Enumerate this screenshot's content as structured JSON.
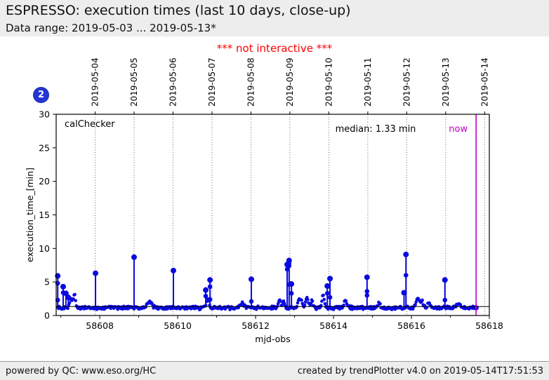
{
  "header": {
    "title": "ESPRESSO: execution times (last 10 days, close-up)",
    "subtitle": "Data range: 2019-05-03 ... 2019-05-13*"
  },
  "notice": "*** not interactive ***",
  "badge": "2",
  "footer": {
    "left": "powered by QC: www.eso.org/HC",
    "right": "created by trendPlotter v4.0 on 2019-05-14T17:51:53"
  },
  "chart_data": {
    "type": "scatter",
    "inner_label": "calChecker",
    "xlabel": "mjd-obs",
    "ylabel": "execution_time_[min]",
    "xlim": [
      58606.88,
      58618.0
    ],
    "ylim": [
      0,
      30
    ],
    "x_major_ticks": [
      58608,
      58610,
      58612,
      58614,
      58616,
      58618
    ],
    "x_minor_ticks": [
      58607,
      58609,
      58611,
      58613,
      58615,
      58617
    ],
    "y_ticks": [
      0,
      5,
      10,
      15,
      20,
      25,
      30
    ],
    "grid": "vertical-dotted-per-date",
    "top_dates": [
      {
        "label": "2019-05-04",
        "mjd": 58607.88
      },
      {
        "label": "2019-05-05",
        "mjd": 58608.88
      },
      {
        "label": "2019-05-06",
        "mjd": 58609.88
      },
      {
        "label": "2019-05-07",
        "mjd": 58610.88
      },
      {
        "label": "2019-05-08",
        "mjd": 58611.88
      },
      {
        "label": "2019-05-09",
        "mjd": 58612.88
      },
      {
        "label": "2019-05-10",
        "mjd": 58613.88
      },
      {
        "label": "2019-05-11",
        "mjd": 58614.88
      },
      {
        "label": "2019-05-12",
        "mjd": 58615.88
      },
      {
        "label": "2019-05-13",
        "mjd": 58616.88
      },
      {
        "label": "2019-05-14",
        "mjd": 58617.88
      }
    ],
    "median": {
      "value": 1.33,
      "label": "median: 1.33 min"
    },
    "now": {
      "mjd": 58617.66,
      "label": "now",
      "color": "#bf00bf"
    },
    "series_color": "#0a0ae0",
    "baseline": {
      "start": 58606.92,
      "end": 58617.66,
      "step": 0.02,
      "base": 1.15,
      "noise": 0.3,
      "seed": 987654321
    },
    "bumps": [
      {
        "mjd": 58607.26,
        "h": 1.4,
        "w": 0.05
      },
      {
        "mjd": 58607.35,
        "h": 2.0,
        "w": 0.04
      },
      {
        "mjd": 58609.28,
        "h": 0.8,
        "w": 0.09
      },
      {
        "mjd": 58610.77,
        "h": 1.5,
        "w": 0.05
      },
      {
        "mjd": 58611.66,
        "h": 0.7,
        "w": 0.07
      },
      {
        "mjd": 58612.61,
        "h": 1.1,
        "w": 0.05
      },
      {
        "mjd": 58612.72,
        "h": 0.9,
        "w": 0.04
      },
      {
        "mjd": 58613.14,
        "h": 1.3,
        "w": 0.07
      },
      {
        "mjd": 58613.32,
        "h": 1.6,
        "w": 0.05
      },
      {
        "mjd": 58613.44,
        "h": 1.1,
        "w": 0.04
      },
      {
        "mjd": 58613.73,
        "h": 2.1,
        "w": 0.04
      },
      {
        "mjd": 58614.31,
        "h": 0.9,
        "w": 0.07
      },
      {
        "mjd": 58615.17,
        "h": 0.7,
        "w": 0.05
      },
      {
        "mjd": 58616.16,
        "h": 1.4,
        "w": 0.06
      },
      {
        "mjd": 58616.27,
        "h": 1.0,
        "w": 0.05
      },
      {
        "mjd": 58616.45,
        "h": 0.9,
        "w": 0.04
      },
      {
        "mjd": 58617.19,
        "h": 0.6,
        "w": 0.06
      }
    ],
    "spikes": [
      {
        "mjd": 58606.92,
        "peak": 5.9,
        "dots": [
          4.8,
          2.3
        ]
      },
      {
        "mjd": 58607.06,
        "peak": 4.3,
        "dots": [
          3.4
        ]
      },
      {
        "mjd": 58607.13,
        "peak": 3.3,
        "dots": []
      },
      {
        "mjd": 58607.19,
        "peak": 2.7,
        "dots": []
      },
      {
        "mjd": 58607.89,
        "peak": 6.3,
        "dots": []
      },
      {
        "mjd": 58608.88,
        "peak": 8.7,
        "dots": []
      },
      {
        "mjd": 58609.89,
        "peak": 6.7,
        "dots": []
      },
      {
        "mjd": 58610.72,
        "peak": 3.8,
        "dots": [
          2.9
        ]
      },
      {
        "mjd": 58610.83,
        "peak": 5.3,
        "dots": [
          4.3,
          2.4
        ]
      },
      {
        "mjd": 58611.89,
        "peak": 5.4,
        "dots": [
          2.1
        ]
      },
      {
        "mjd": 58612.81,
        "peak": 7.6,
        "dots": [
          6.9
        ]
      },
      {
        "mjd": 58612.86,
        "peak": 8.2,
        "dots": [
          7.8,
          7.4,
          4.6
        ]
      },
      {
        "mjd": 58612.92,
        "peak": 4.7,
        "dots": [
          3.3
        ]
      },
      {
        "mjd": 58613.84,
        "peak": 4.4,
        "dots": [
          3.3
        ]
      },
      {
        "mjd": 58613.91,
        "peak": 5.5,
        "dots": [
          2.7
        ]
      },
      {
        "mjd": 58614.86,
        "peak": 5.7,
        "dots": [
          3.6,
          3.0
        ]
      },
      {
        "mjd": 58615.81,
        "peak": 3.4,
        "dots": []
      },
      {
        "mjd": 58615.86,
        "peak": 9.1,
        "dots": [
          6.0
        ]
      },
      {
        "mjd": 58616.86,
        "peak": 5.3,
        "dots": [
          2.3
        ]
      }
    ]
  }
}
